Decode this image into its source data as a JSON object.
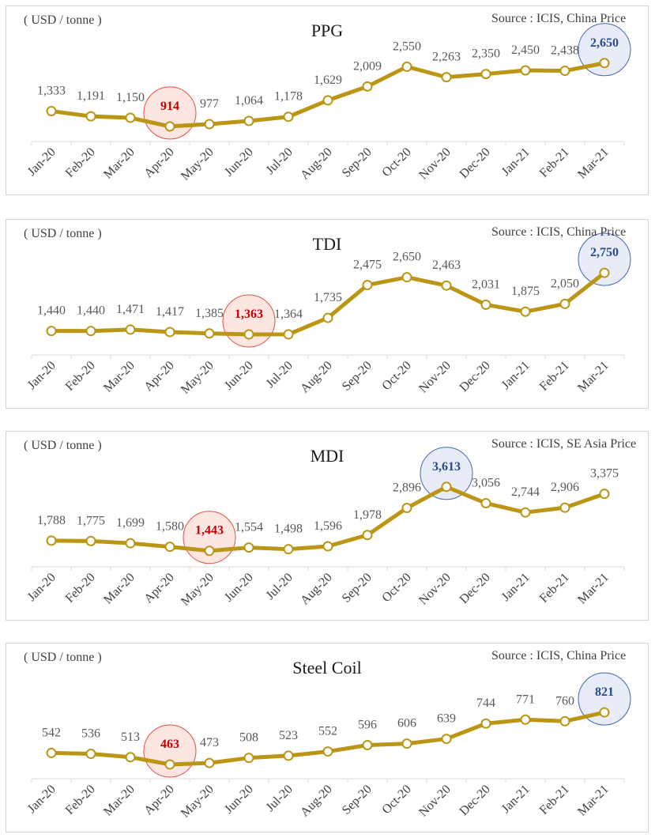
{
  "chart_data": [
    {
      "type": "line",
      "title": "PPG",
      "ylabel": "( USD / tonne )",
      "source": "Source : ICIS, China Price",
      "categories": [
        "Jan-20",
        "Feb-20",
        "Mar-20",
        "Apr-20",
        "May-20",
        "Jun-20",
        "Jul-20",
        "Aug-20",
        "Sep-20",
        "Oct-20",
        "Nov-20",
        "Dec-20",
        "Jan-21",
        "Feb-21",
        "Mar-21"
      ],
      "values": [
        1333,
        1191,
        1150,
        914,
        977,
        1064,
        1178,
        1629,
        2009,
        2550,
        2263,
        2350,
        2450,
        2438,
        2650
      ],
      "labels": [
        "1,333",
        "1,191",
        "1,150",
        "914",
        "977",
        "1,064",
        "1,178",
        "1,629",
        "2,009",
        "2,550",
        "2,263",
        "2,350",
        "2,450",
        "2,438",
        "2,650"
      ],
      "highlight": {
        "min": 914,
        "max": 2650
      },
      "ylim": [
        500,
        3750
      ],
      "grid": false
    },
    {
      "type": "line",
      "title": "TDI",
      "ylabel": "( USD / tonne )",
      "source": "Source : ICIS, China Price",
      "categories": [
        "Jan-20",
        "Feb-20",
        "Mar-20",
        "Apr-20",
        "May-20",
        "Jun-20",
        "Jul-20",
        "Aug-20",
        "Sep-20",
        "Oct-20",
        "Nov-20",
        "Dec-20",
        "Jan-21",
        "Feb-21",
        "Mar-21"
      ],
      "values": [
        1440,
        1440,
        1471,
        1417,
        1385,
        1363,
        1364,
        1735,
        2475,
        2650,
        2463,
        2031,
        1875,
        2050,
        2750
      ],
      "labels": [
        "1,440",
        "1,440",
        "1,471",
        "1,417",
        "1,385",
        "1,363",
        "1,364",
        "1,735",
        "2,475",
        "2,650",
        "2,463",
        "2,031",
        "1,875",
        "2,050",
        "2,750"
      ],
      "highlight": {
        "min": 1363,
        "max": 2750
      },
      "ylim": [
        900,
        3570
      ],
      "grid": false
    },
    {
      "type": "line",
      "title": "MDI",
      "ylabel": "( USD / tonne )",
      "source": "Source : ICIS, SE Asia Price",
      "categories": [
        "Jan-20",
        "Feb-20",
        "Mar-20",
        "Apr-20",
        "May-20",
        "Jun-20",
        "Jul-20",
        "Aug-20",
        "Sep-20",
        "Oct-20",
        "Nov-20",
        "Dec-20",
        "Jan-21",
        "Feb-21",
        "Mar-21"
      ],
      "values": [
        1788,
        1775,
        1699,
        1580,
        1443,
        1554,
        1498,
        1596,
        1978,
        2896,
        3613,
        3056,
        2744,
        2906,
        3375
      ],
      "labels": [
        "1,788",
        "1,775",
        "1,699",
        "1,580",
        "1,443",
        "1,554",
        "1,498",
        "1,596",
        "1,978",
        "2,896",
        "3,613",
        "3,056",
        "2,744",
        "2,906",
        "3,375"
      ],
      "highlight": {
        "min": 1443,
        "max": 3613
      },
      "ylim": [
        900,
        4920
      ],
      "grid": false
    },
    {
      "type": "line",
      "title": "Steel Coil",
      "ylabel": "( USD / tonne )",
      "source": "Source : ICIS, China Price",
      "categories": [
        "Jan-20",
        "Feb-20",
        "Mar-20",
        "Apr-20",
        "May-20",
        "Jun-20",
        "Jul-20",
        "Aug-20",
        "Sep-20",
        "Oct-20",
        "Nov-20",
        "Dec-20",
        "Jan-21",
        "Feb-21",
        "Mar-21"
      ],
      "values": [
        542,
        536,
        513,
        463,
        473,
        508,
        523,
        552,
        596,
        606,
        639,
        744,
        771,
        760,
        821
      ],
      "labels": [
        "542",
        "536",
        "513",
        "463",
        "473",
        "508",
        "523",
        "552",
        "596",
        "606",
        "639",
        "744",
        "771",
        "760",
        "821"
      ],
      "highlight": {
        "min": 463,
        "max": 821
      },
      "ylim": [
        365,
        1180
      ],
      "grid": false
    }
  ],
  "colors": {
    "line": "#bb9514",
    "data_label": "#595959",
    "min_label": "#c00000",
    "min_circle_stroke": "#e0533d",
    "min_circle_fill": "#fde5e2",
    "max_label": "#2b4a8b",
    "max_circle_stroke": "#4267b2",
    "max_circle_fill": "#e7ecf6"
  }
}
